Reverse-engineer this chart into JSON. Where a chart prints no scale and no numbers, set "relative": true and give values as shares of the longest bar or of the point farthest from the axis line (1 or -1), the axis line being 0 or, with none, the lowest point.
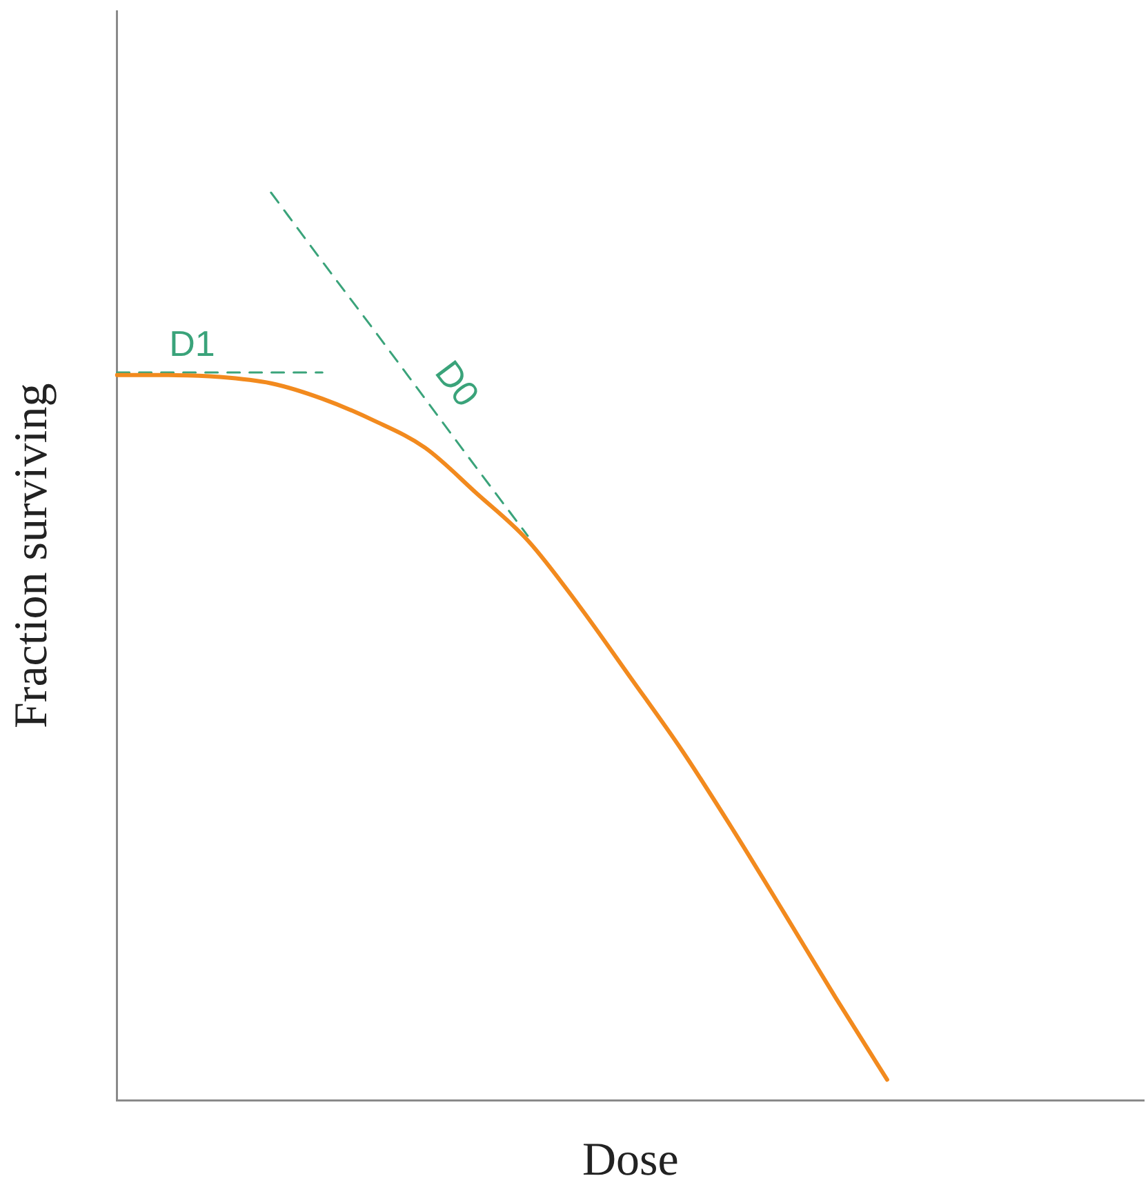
{
  "chart_data": {
    "type": "line",
    "relative": true,
    "xlabel": "Dose",
    "ylabel": "Fraction surviving",
    "grid": false,
    "legend": false,
    "marker": "none",
    "categories": [
      null,
      null,
      null,
      null,
      null,
      null,
      null,
      null,
      null,
      null,
      null,
      null,
      null,
      null,
      null,
      null,
      null,
      null,
      null,
      null,
      null
    ],
    "series": [
      {
        "color": "#f28a1e",
        "line_style": "solid",
        "values": [
          0.799,
          0.799,
          0.797,
          0.79,
          0.773,
          0.749,
          0.719,
          0.669,
          0.617,
          0.545,
          0.466,
          0.386,
          0.298,
          0.206,
          0.113,
          0.023,
          null,
          null,
          null,
          null,
          null
        ]
      },
      {
        "name": "D1",
        "color": "#3aa37a",
        "line_style": "dashed",
        "values": [
          0.802,
          0.802,
          0.802,
          0.802,
          0.802,
          null,
          null,
          null,
          null,
          null,
          null,
          null,
          null,
          null,
          null,
          null,
          null,
          null,
          null,
          null,
          null
        ]
      },
      {
        "name": "D0",
        "color": "#3aa37a",
        "line_style": "dashed",
        "values": [
          null,
          null,
          null,
          1,
          0.924,
          0.849,
          0.773,
          0.697,
          0.622,
          null,
          null,
          null,
          null,
          null,
          null,
          null,
          null,
          null,
          null,
          null,
          null
        ]
      }
    ]
  }
}
